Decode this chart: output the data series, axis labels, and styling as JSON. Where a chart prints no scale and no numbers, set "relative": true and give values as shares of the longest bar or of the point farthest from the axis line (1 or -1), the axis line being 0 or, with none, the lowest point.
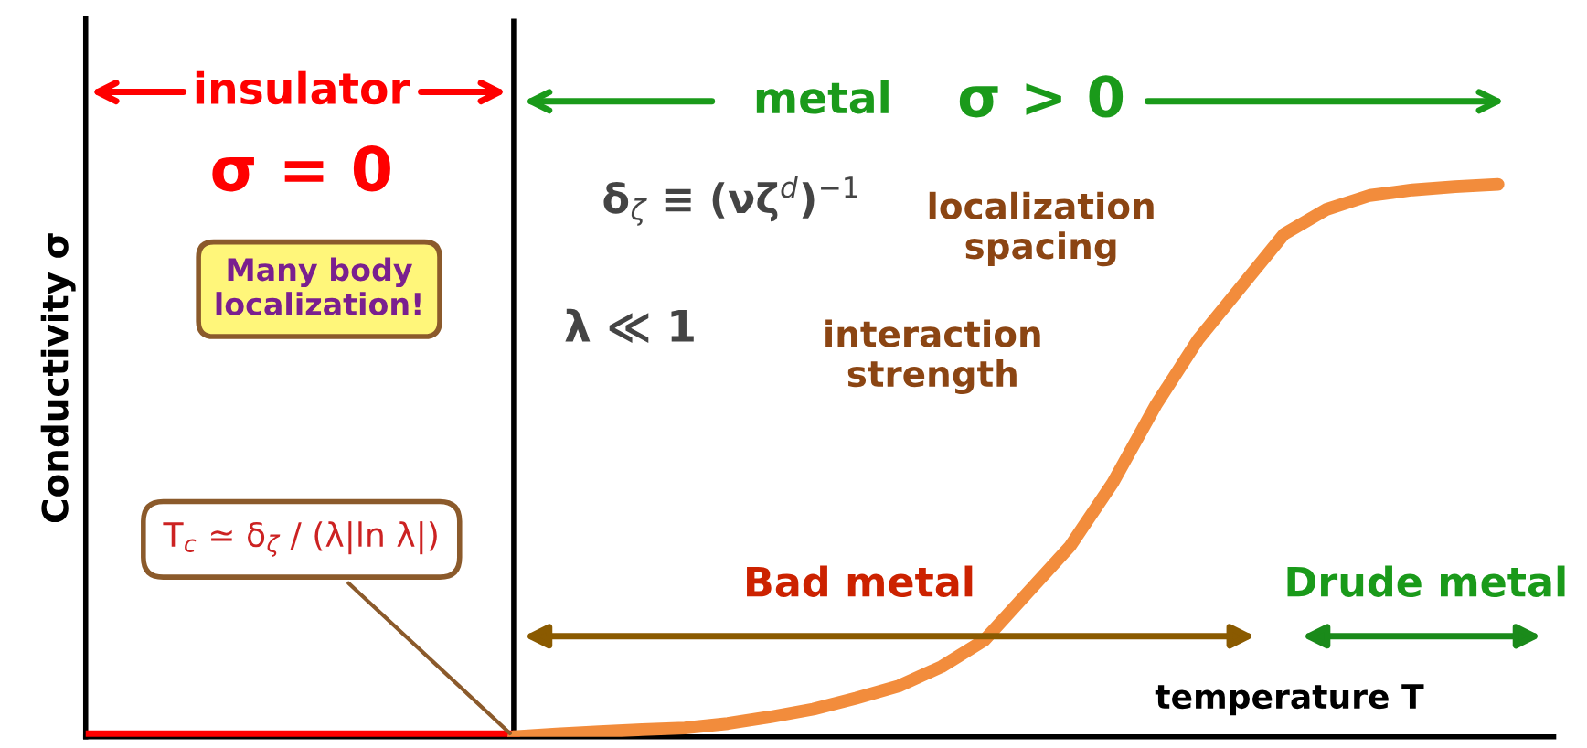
{
  "chart_data": {
    "type": "line",
    "relative": true,
    "xlabel": "temperature T",
    "ylabel": "Conductivity σ",
    "categories": [
      null,
      null,
      null,
      null,
      null,
      null,
      null,
      null,
      null,
      null,
      null,
      null,
      null,
      null,
      null,
      null,
      null,
      null,
      null,
      null,
      null,
      null,
      null,
      null,
      null,
      null,
      null,
      null,
      null,
      null,
      null,
      null,
      null,
      null
    ],
    "series": [
      {
        "color": "#ff0000",
        "values": [
          0,
          0,
          0,
          0,
          0,
          0,
          0,
          0,
          0,
          0,
          0,
          null,
          null,
          null,
          null,
          null,
          null,
          null,
          null,
          null,
          null,
          null,
          null,
          null,
          null,
          null,
          null,
          null,
          null,
          null,
          null,
          null,
          null,
          null
        ]
      },
      {
        "color": "#f28c3c",
        "values": [
          null,
          null,
          null,
          null,
          null,
          null,
          null,
          null,
          null,
          null,
          0,
          0.005,
          0.009,
          0.013,
          0.016,
          0.024,
          0.036,
          0.05,
          0.07,
          0.092,
          0.127,
          0.175,
          0.26,
          0.345,
          0.46,
          0.6,
          0.72,
          0.815,
          0.91,
          0.955,
          0.98,
          0.99,
          0.996,
          1
        ]
      }
    ],
    "annotations": [
      "insulator",
      "metal",
      "σ > 0",
      "σ = 0",
      "Many body\nlocalization!",
      "δ$_{ζ}$ ≡ (νζ$^{d}$)$^{−1}$",
      "localization\nspacing",
      "λ ≪ 1",
      "interaction\nstrength",
      "T$_{c}$ ≃ δ$_{ζ}$ / (λ|ln λ|)",
      "Bad metal",
      "Drude metal"
    ]
  }
}
